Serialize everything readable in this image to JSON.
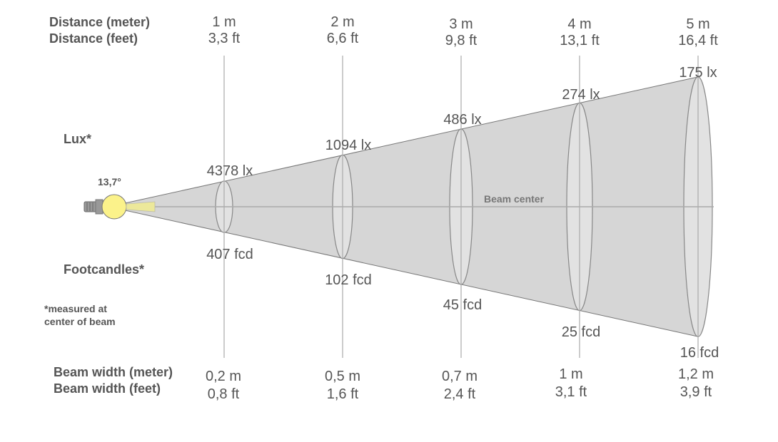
{
  "labels": {
    "distance_meter": "Distance (meter)",
    "distance_feet": "Distance (feet)",
    "lux": "Lux*",
    "footcandles": "Footcandles*",
    "note_line1": "*measured at",
    "note_line2": "center of beam",
    "beam_width_meter": "Beam width (meter)",
    "beam_width_feet": "Beam width (feet)",
    "beam_center": "Beam center",
    "beam_angle": "13,7°"
  },
  "columns": [
    {
      "distance_m": "1 m",
      "distance_ft": "3,3 ft",
      "lux": "4378 lx",
      "fcd": "407 fcd",
      "width_m": "0,2 m",
      "width_ft": "0,8 ft"
    },
    {
      "distance_m": "2 m",
      "distance_ft": "6,6 ft",
      "lux": "1094 lx",
      "fcd": "102 fcd",
      "width_m": "0,5 m",
      "width_ft": "1,6 ft"
    },
    {
      "distance_m": "3 m",
      "distance_ft": "9,8 ft",
      "lux": "486 lx",
      "fcd": "45 fcd",
      "width_m": "0,7 m",
      "width_ft": "2,4 ft"
    },
    {
      "distance_m": "4 m",
      "distance_ft": "13,1 ft",
      "lux": "274 lx",
      "fcd": "25 fcd",
      "width_m": "1 m",
      "width_ft": "3,1 ft"
    },
    {
      "distance_m": "5 m",
      "distance_ft": "16,4 ft",
      "lux": "175 lx",
      "fcd": "16 fcd",
      "width_m": "1,2 m",
      "width_ft": "3,9 ft"
    }
  ],
  "colors": {
    "beam": "#d6d6d6",
    "lamp": "#fbf28a",
    "beam_core": "#ece89a",
    "lines": "#aaaaaa",
    "text": "#555555"
  }
}
